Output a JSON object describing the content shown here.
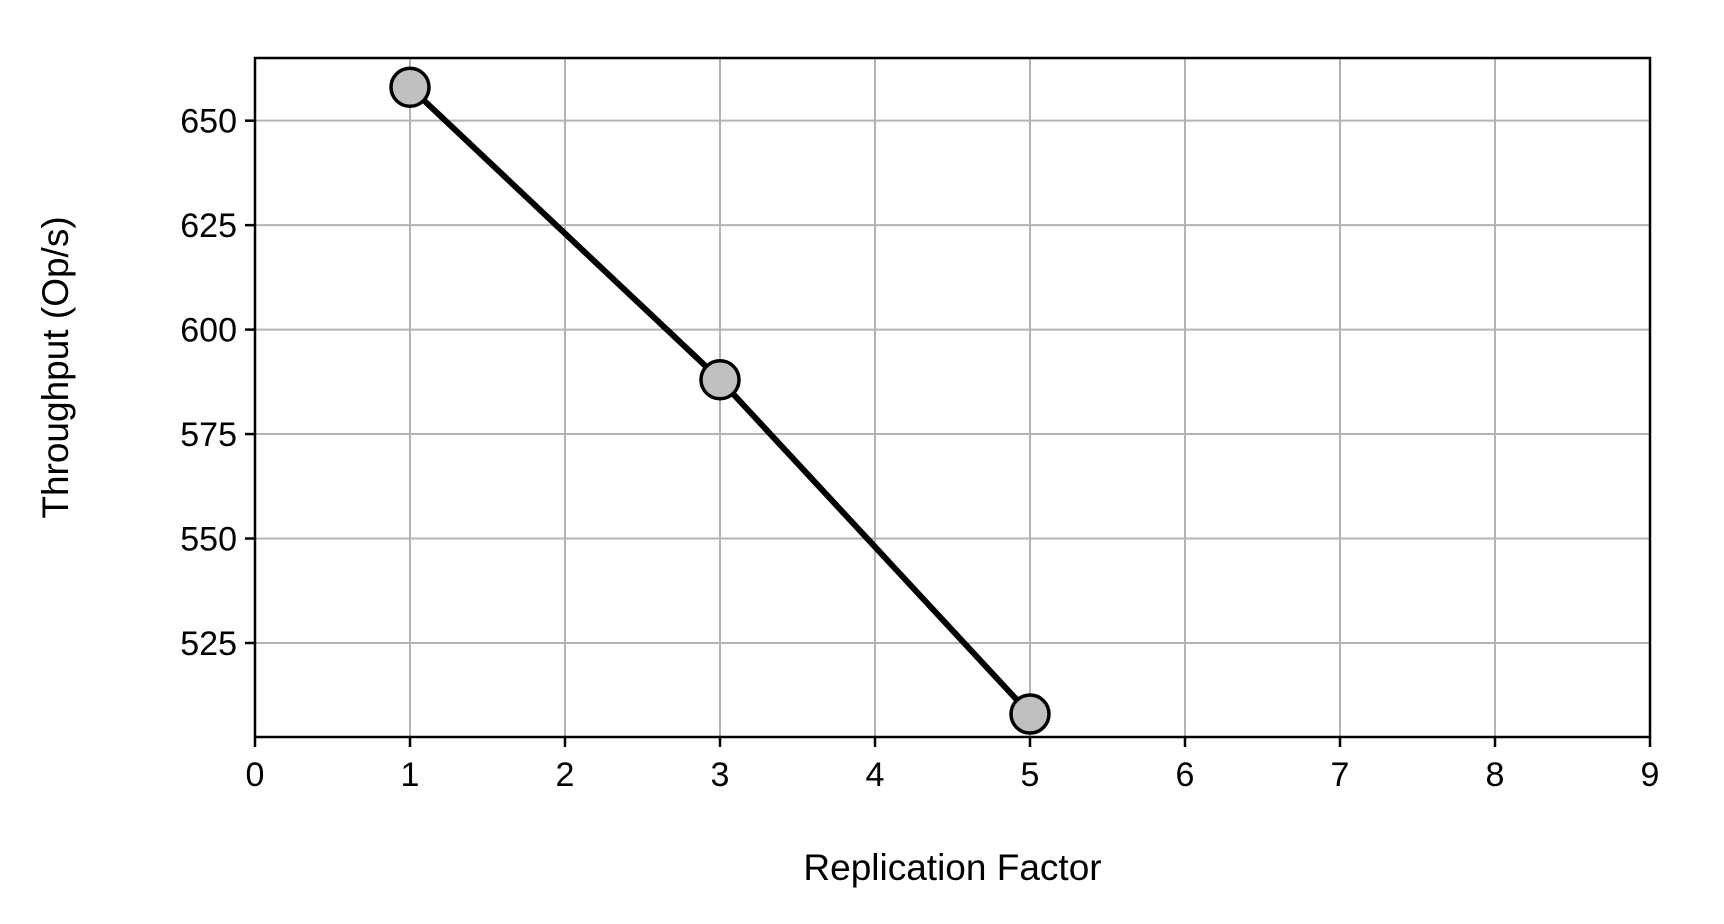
{
  "chart_data": {
    "type": "line",
    "title": "",
    "xlabel": "Replication Factor",
    "ylabel": "Throughput (Op/s)",
    "xlim": [
      0,
      9
    ],
    "ylim": [
      502.5,
      665
    ],
    "x_ticks": [
      0,
      1,
      2,
      3,
      4,
      5,
      6,
      7,
      8,
      9
    ],
    "y_ticks": [
      525,
      550,
      575,
      600,
      625,
      650
    ],
    "grid": true,
    "legend": "none",
    "series": [
      {
        "x": [
          1,
          3,
          5
        ],
        "y": [
          658,
          588,
          508
        ],
        "line_color": "#000000",
        "marker": "circle",
        "marker_fill": "#c0c0c0",
        "marker_edge": "#000000"
      }
    ],
    "colors": {
      "grid": "#b3b3b3",
      "axis": "#000000",
      "background": "#ffffff"
    }
  }
}
